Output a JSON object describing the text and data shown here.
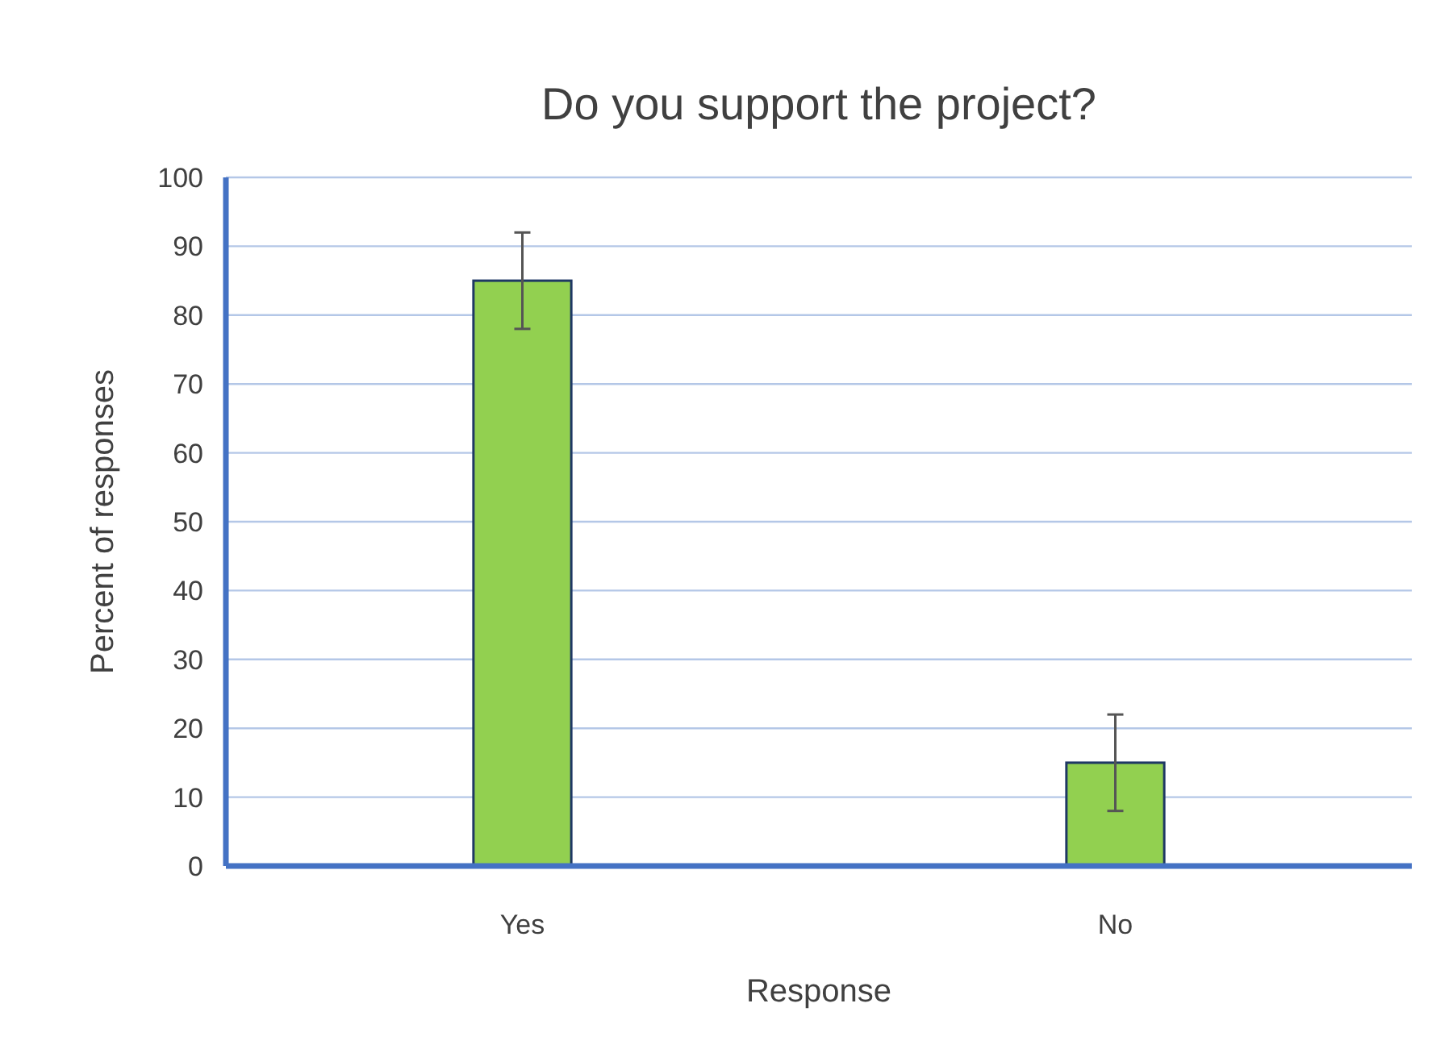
{
  "chart_data": {
    "type": "bar",
    "title": "Do you support the project?",
    "xlabel": "Response",
    "ylabel": "Percent of responses",
    "categories": [
      "Yes",
      "No"
    ],
    "values": [
      85,
      15
    ],
    "errors": [
      7,
      7
    ],
    "color": "#92d050",
    "ylim": [
      0,
      100
    ],
    "yticks": [
      0,
      10,
      20,
      30,
      40,
      50,
      60,
      70,
      80,
      90,
      100
    ],
    "grid": "y"
  }
}
